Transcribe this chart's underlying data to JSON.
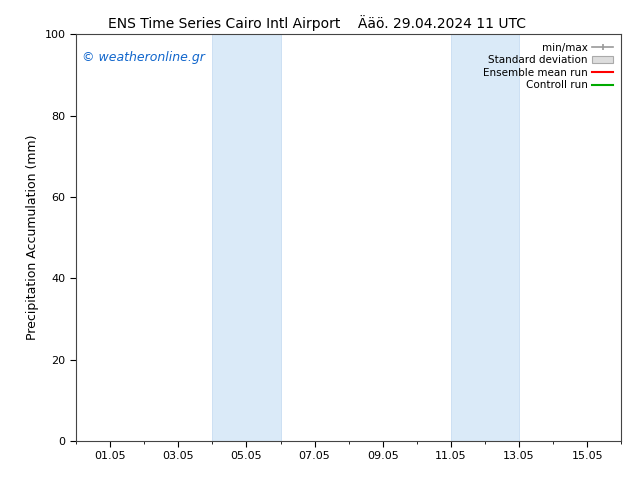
{
  "title_left": "ENS Time Series Cairo Intl Airport",
  "title_right": "Ääö. 29.04.2024 11 UTC",
  "ylabel": "Precipitation Accumulation (mm)",
  "watermark": "© weatheronline.gr",
  "watermark_color": "#1166cc",
  "ylim": [
    0,
    100
  ],
  "yticks": [
    0,
    20,
    40,
    60,
    80,
    100
  ],
  "xtick_labels": [
    "01.05",
    "03.05",
    "05.05",
    "07.05",
    "09.05",
    "11.05",
    "13.05",
    "15.05"
  ],
  "xmin": 0.0,
  "xmax": 16.0,
  "xtick_positions": [
    1.0,
    3.0,
    5.0,
    7.0,
    9.0,
    11.0,
    13.0,
    15.0
  ],
  "shaded_regions": [
    {
      "xmin": 4.0,
      "xmax": 6.0
    },
    {
      "xmin": 11.0,
      "xmax": 13.0
    }
  ],
  "shaded_color": "#daeaf8",
  "shaded_edge_color": "#c0d8f0",
  "background_color": "#ffffff",
  "plot_bg_color": "#ffffff",
  "legend_labels": [
    "min/max",
    "Standard deviation",
    "Ensemble mean run",
    "Controll run"
  ],
  "legend_line_color_minmax": "#999999",
  "legend_fill_color_std": "#dddddd",
  "legend_fill_edge_std": "#aaaaaa",
  "legend_line_color_ens": "#ff0000",
  "legend_line_color_ctrl": "#00aa00",
  "title_fontsize": 10,
  "ylabel_fontsize": 9,
  "tick_fontsize": 8,
  "watermark_fontsize": 9,
  "legend_fontsize": 7.5
}
